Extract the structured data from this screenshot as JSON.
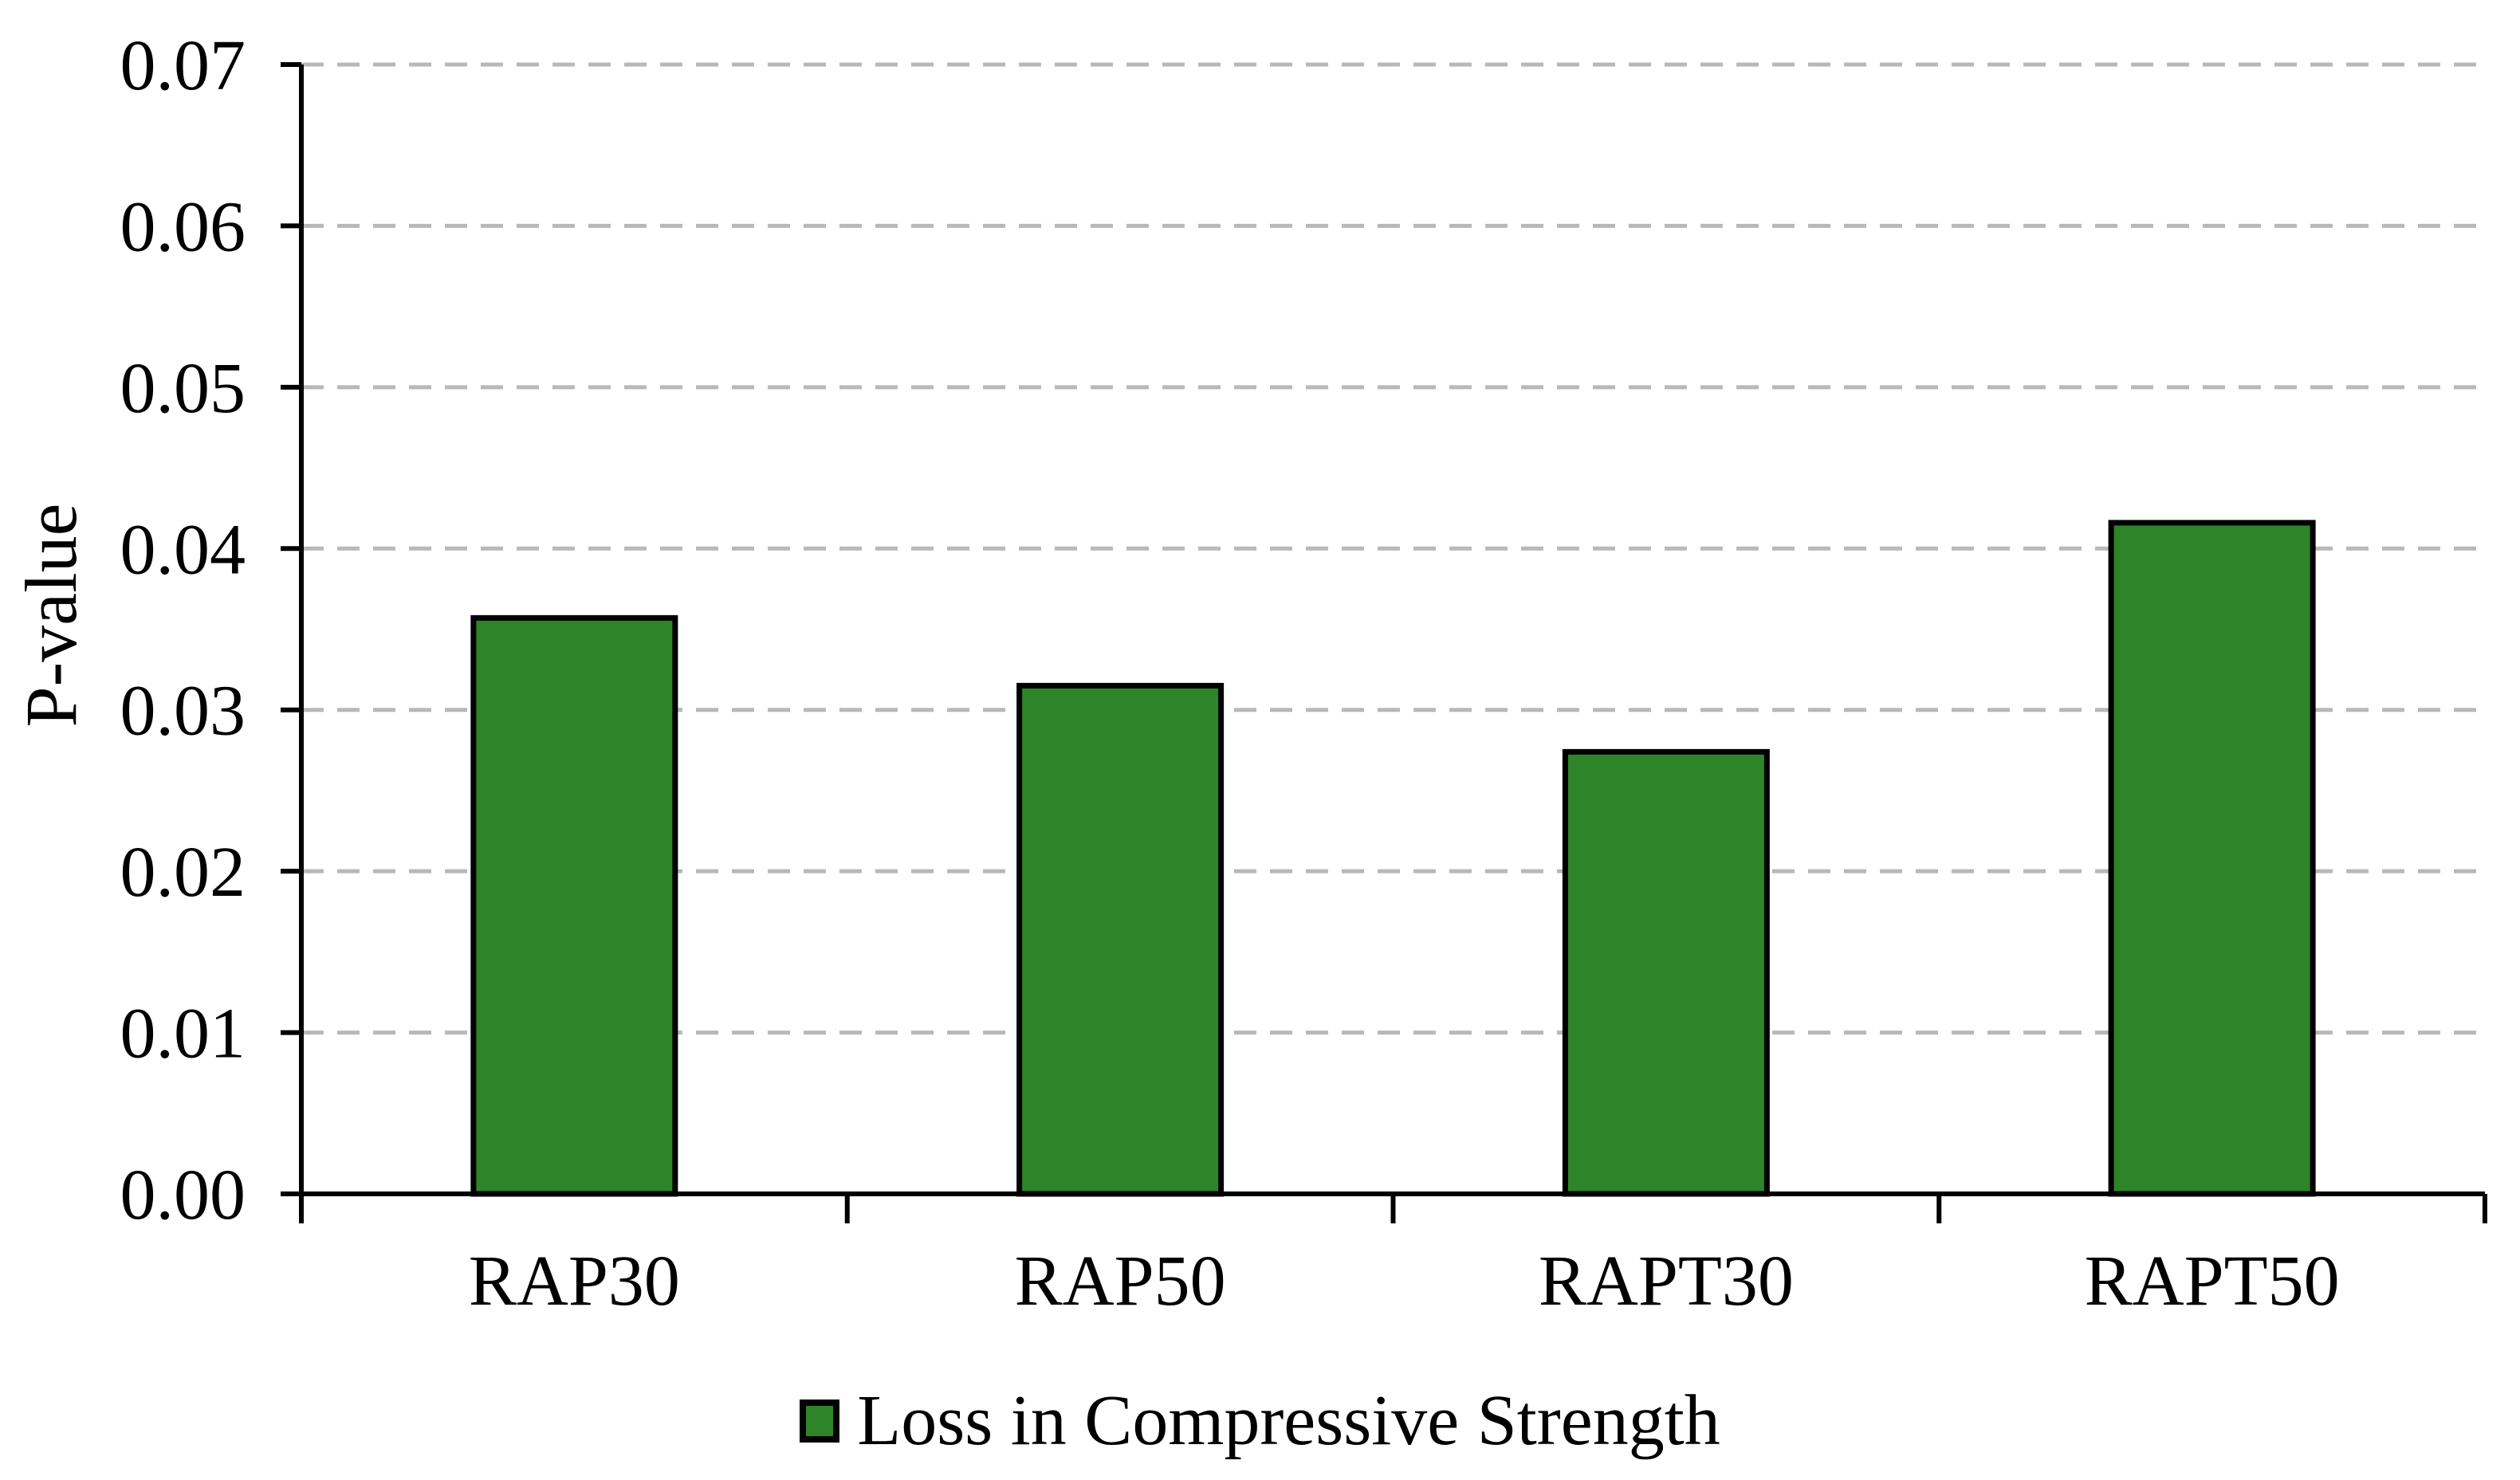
{
  "chart_data": {
    "type": "bar",
    "title": "",
    "xlabel": "",
    "ylabel": "P-value",
    "categories": [
      "RAP30",
      "RAP50",
      "RAPT30",
      "RAPT50"
    ],
    "series": [
      {
        "name": "Loss in Compressive Strength",
        "values": [
          0.0357,
          0.0315,
          0.0274,
          0.0416
        ]
      }
    ],
    "ylim": [
      0.0,
      0.07
    ],
    "ytick_step": 0.01,
    "ytick_labels": [
      "0.00",
      "0.01",
      "0.02",
      "0.03",
      "0.04",
      "0.05",
      "0.06",
      "0.07"
    ],
    "grid": "horizontal-dashed",
    "legend_position": "bottom-center",
    "colors": {
      "bar_fill": "#2e8428",
      "bar_border": "#000000",
      "gridline": "#b8b8b8",
      "axis": "#000000",
      "text": "#000000",
      "background": "#ffffff"
    }
  },
  "legend": {
    "label": "Loss in Compressive Strength"
  }
}
